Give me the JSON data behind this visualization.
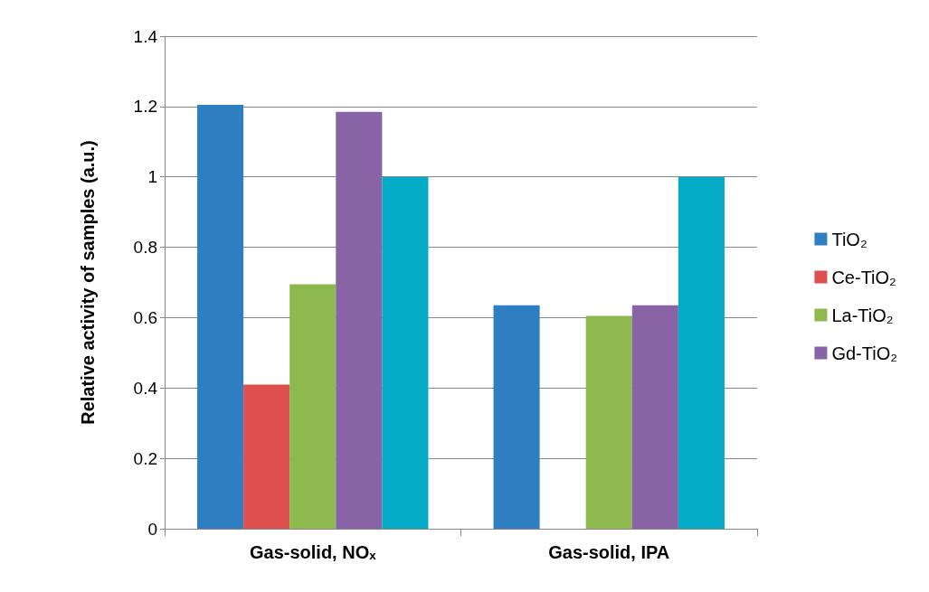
{
  "chart_data": {
    "type": "bar",
    "ylabel": "Relative activity of samples (a.u.)",
    "categories": [
      "Gas-solid, NOₓ",
      "Gas-solid, IPA"
    ],
    "series": [
      {
        "name": "TiO₂",
        "color": "#2f7ec1",
        "values": [
          1.205,
          0.635
        ]
      },
      {
        "name": "Ce-TiO₂",
        "color": "#dd4f4d",
        "values": [
          0.41,
          null
        ]
      },
      {
        "name": "La-TiO₂",
        "color": "#8db94f",
        "values": [
          0.695,
          0.605
        ]
      },
      {
        "name": "Gd-TiO₂",
        "color": "#8864a6",
        "values": [
          1.185,
          0.635
        ]
      },
      {
        "color": "#04aac6",
        "values": [
          1.0,
          1.0
        ]
      }
    ],
    "ylim": [
      0,
      1.4
    ],
    "yticks": [
      0,
      0.2,
      0.4,
      0.6,
      0.8,
      1,
      1.2,
      1.4
    ],
    "grid": "y",
    "legend": "right"
  }
}
